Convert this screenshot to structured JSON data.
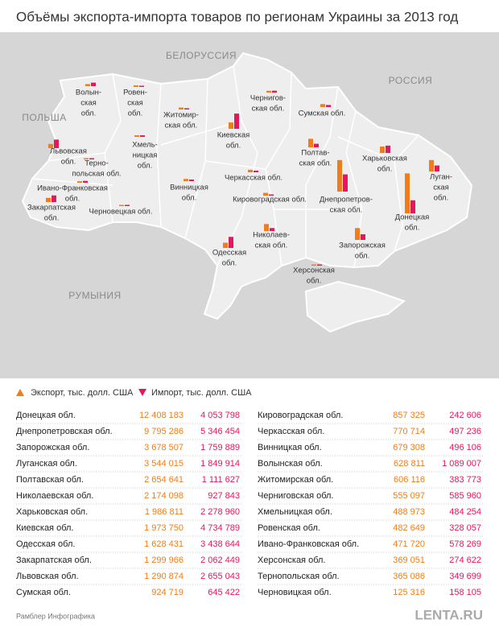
{
  "header": {
    "title": "Объёмы экспорта-импорта товаров по регионам Украины за 2013 год"
  },
  "map": {
    "countries": [
      "БЕЛОРУССИЯ",
      "РОССИЯ",
      "ПОЛЬША",
      "РУМЫНИЯ"
    ]
  },
  "colors": {
    "export": "#f07d1a",
    "import": "#e3195b"
  },
  "legend": {
    "export": "Экспорт, тыс. долл. США",
    "import": "Импорт, тыс. долл. США"
  },
  "regions": [
    {
      "name": "Донецкая обл.",
      "map_label": [
        "Донецкая",
        "обл."
      ],
      "export": {
        "value": 12408183,
        "label": "12 408 183"
      },
      "import": {
        "value": 4053798,
        "label": "4 053 798"
      }
    },
    {
      "name": "Днепропетровская обл.",
      "map_label": [
        "Днепропетров-",
        "ская обл."
      ],
      "export": {
        "value": 9795286,
        "label": "9 795 286"
      },
      "import": {
        "value": 5346454,
        "label": "5 346 454"
      }
    },
    {
      "name": "Запорожская обл.",
      "map_label": [
        "Запорожская",
        "обл."
      ],
      "export": {
        "value": 3678507,
        "label": "3 678 507"
      },
      "import": {
        "value": 1759889,
        "label": "1 759 889"
      }
    },
    {
      "name": "Луганская обл.",
      "map_label": [
        "Луган-",
        "ская",
        "обл."
      ],
      "export": {
        "value": 3544015,
        "label": "3 544 015"
      },
      "import": {
        "value": 1849914,
        "label": "1 849 914"
      }
    },
    {
      "name": "Полтавская обл.",
      "map_label": [
        "Полтав-",
        "ская обл."
      ],
      "export": {
        "value": 2654641,
        "label": "2 654 641"
      },
      "import": {
        "value": 1111627,
        "label": "1 111 627"
      }
    },
    {
      "name": "Николаевская обл.",
      "map_label": [
        "Николаев-",
        "ская обл."
      ],
      "export": {
        "value": 2174098,
        "label": "2 174 098"
      },
      "import": {
        "value": 927843,
        "label": "927 843"
      }
    },
    {
      "name": "Харьковская обл.",
      "map_label": [
        "Харьковская",
        "обл."
      ],
      "export": {
        "value": 1986811,
        "label": "1 986 811"
      },
      "import": {
        "value": 2278960,
        "label": "2 278 960"
      }
    },
    {
      "name": "Киевская обл.",
      "map_label": [
        "Киевская",
        "обл."
      ],
      "export": {
        "value": 1973750,
        "label": "1 973 750"
      },
      "import": {
        "value": 4734789,
        "label": "4 734 789"
      }
    },
    {
      "name": "Одесская обл.",
      "map_label": [
        "Одесская",
        "обл."
      ],
      "export": {
        "value": 1628431,
        "label": "1 628 431"
      },
      "import": {
        "value": 3438644,
        "label": "3 438 644"
      }
    },
    {
      "name": "Закарпатская обл.",
      "map_label": [
        "Закарпатская",
        "обл."
      ],
      "export": {
        "value": 1299966,
        "label": "1 299 966"
      },
      "import": {
        "value": 2062449,
        "label": "2 062 449"
      }
    },
    {
      "name": "Львовская обл.",
      "map_label": [
        "Львовская",
        "обл."
      ],
      "export": {
        "value": 1290874,
        "label": "1 290 874"
      },
      "import": {
        "value": 2655043,
        "label": "2 655 043"
      }
    },
    {
      "name": "Сумская обл.",
      "map_label": [
        "Сумская обл."
      ],
      "export": {
        "value": 924719,
        "label": "924 719"
      },
      "import": {
        "value": 645422,
        "label": "645 422"
      }
    },
    {
      "name": "Кировоградская обл.",
      "map_label": [
        "Кировоградская обл."
      ],
      "export": {
        "value": 857325,
        "label": "857 325"
      },
      "import": {
        "value": 242606,
        "label": "242 606"
      }
    },
    {
      "name": "Черкасская обл.",
      "map_label": [
        "Черкасская обл."
      ],
      "export": {
        "value": 770714,
        "label": "770 714"
      },
      "import": {
        "value": 497236,
        "label": "497 236"
      }
    },
    {
      "name": "Винницкая обл.",
      "map_label": [
        "Винницкая",
        "обл."
      ],
      "export": {
        "value": 679308,
        "label": "679 308"
      },
      "import": {
        "value": 496106,
        "label": "496 106"
      }
    },
    {
      "name": "Волынская обл.",
      "map_label": [
        "Волын-",
        "ская",
        "обл."
      ],
      "export": {
        "value": 628811,
        "label": "628 811"
      },
      "import": {
        "value": 1089007,
        "label": "1 089 007"
      }
    },
    {
      "name": "Житомирская обл.",
      "map_label": [
        "Житомир-",
        "ская обл."
      ],
      "export": {
        "value": 606116,
        "label": "606 116"
      },
      "import": {
        "value": 383773,
        "label": "383 773"
      }
    },
    {
      "name": "Черниговская обл.",
      "map_label": [
        "Чернигов-",
        "ская обл."
      ],
      "export": {
        "value": 555097,
        "label": "555 097"
      },
      "import": {
        "value": 585960,
        "label": "585 960"
      }
    },
    {
      "name": "Хмельницкая обл.",
      "map_label": [
        "Хмель-",
        "ницкая",
        "обл."
      ],
      "export": {
        "value": 488973,
        "label": "488 973"
      },
      "import": {
        "value": 484254,
        "label": "484 254"
      }
    },
    {
      "name": "Ровенская обл.",
      "map_label": [
        "Ровен-",
        "ская",
        "обл."
      ],
      "export": {
        "value": 482649,
        "label": "482 649"
      },
      "import": {
        "value": 328057,
        "label": "328 057"
      }
    },
    {
      "name": "Ивано-Франковская обл.",
      "map_label": [
        "Ивано-Франковская",
        "обл."
      ],
      "export": {
        "value": 471720,
        "label": "471 720"
      },
      "import": {
        "value": 578269,
        "label": "578 269"
      }
    },
    {
      "name": "Херсонская обл.",
      "map_label": [
        "Херсонская",
        "обл."
      ],
      "export": {
        "value": 369051,
        "label": "369 051"
      },
      "import": {
        "value": 274622,
        "label": "274 622"
      }
    },
    {
      "name": "Тернопольская обл.",
      "map_label": [
        "Терно-",
        "польская обл."
      ],
      "export": {
        "value": 365086,
        "label": "365 086"
      },
      "import": {
        "value": 349699,
        "label": "349 699"
      }
    },
    {
      "name": "Черновицкая обл.",
      "map_label": [
        "Черновецкая обл."
      ],
      "export": {
        "value": 125316,
        "label": "125 316"
      },
      "import": {
        "value": 158105,
        "label": "158 105"
      }
    }
  ],
  "footer": {
    "source": "Рамблер Инфографика",
    "logo": "LENTA.RU"
  }
}
